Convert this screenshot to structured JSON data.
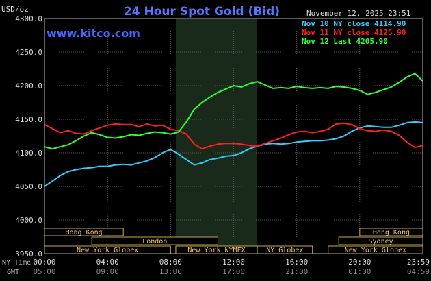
{
  "header": {
    "unit_label": "USD/oz",
    "title": "24 Hour Spot Gold (Bid)",
    "timestamp": "November 12, 2025 23:51",
    "watermark": "www.kitco.com"
  },
  "legend": [
    {
      "text": "Nov 10 NY close 4114.90",
      "color": "#33ccff"
    },
    {
      "text": "Nov 11 NY close 4125.90",
      "color": "#ff2020"
    },
    {
      "text": "Nov 12 Last 4205.90",
      "color": "#33ff33"
    }
  ],
  "axis": {
    "y_ticks": [
      "4300.0",
      "4250.0",
      "4200.0",
      "4150.0",
      "4100.0",
      "4050.0",
      "4000.0",
      "3950.0"
    ],
    "x_ticks_ny": [
      "00:00",
      "04:00",
      "08:00",
      "12:00",
      "16:00",
      "20:00",
      "23:59"
    ],
    "x_ticks_gmt": [
      "05:00",
      "09:00",
      "13:00",
      "17:00",
      "21:00",
      "01:00",
      "04:59"
    ],
    "row_label_ny": "NY Time",
    "row_label_gmt": "GMT"
  },
  "sessions": [
    {
      "label": "Hong Kong",
      "start": 0.0,
      "end": 5.0,
      "row": 0
    },
    {
      "label": "Hong Kong",
      "start": 20.0,
      "end": 24.0,
      "row": 0
    },
    {
      "label": "London",
      "start": 3.0,
      "end": 11.0,
      "row": 1
    },
    {
      "label": "Sydney",
      "start": 18.67,
      "end": 24.0,
      "row": 1
    },
    {
      "label": "New York Globex",
      "start": 0.0,
      "end": 8.0,
      "row": 2
    },
    {
      "label": "New York NYMEX",
      "start": 8.33,
      "end": 13.5,
      "row": 2
    },
    {
      "label": "NY Globex",
      "start": 13.5,
      "end": 17.0,
      "row": 2
    },
    {
      "label": "New York Globex",
      "start": 18.0,
      "end": 24.0,
      "row": 2
    }
  ],
  "chart_data": {
    "type": "line",
    "title": "24 Hour Spot Gold (Bid)",
    "ylabel": "USD/oz",
    "xlabel": "NY Time",
    "ylim": [
      3950,
      4300
    ],
    "xlim": [
      0,
      24
    ],
    "grid": true,
    "highlight_range": [
      8.33,
      13.5
    ],
    "series": [
      {
        "name": "Nov 10 NY close 4114.90",
        "color": "#33ccff",
        "x": [
          0,
          0.5,
          1,
          1.5,
          2,
          2.5,
          3,
          3.5,
          4,
          4.5,
          5,
          5.5,
          6,
          6.5,
          7,
          7.5,
          8,
          8.5,
          9,
          9.5,
          10,
          10.5,
          11,
          11.5,
          12,
          12.5,
          13,
          13.5,
          14,
          14.5,
          15,
          15.5,
          16,
          16.5,
          17,
          17.5,
          18,
          18.5,
          19,
          19.5,
          20,
          20.5,
          21,
          21.5,
          22,
          22.5,
          23,
          23.5,
          24
        ],
        "y": [
          4050,
          4058,
          4066,
          4072,
          4075,
          4077,
          4078,
          4080,
          4080,
          4082,
          4083,
          4082,
          4085,
          4088,
          4093,
          4100,
          4105,
          4098,
          4090,
          4082,
          4085,
          4090,
          4092,
          4095,
          4096,
          4100,
          4106,
          4110,
          4113,
          4114,
          4113,
          4114,
          4116,
          4117,
          4118,
          4118,
          4119,
          4121,
          4125,
          4132,
          4137,
          4140,
          4139,
          4138,
          4138,
          4141,
          4145,
          4146,
          4145
        ]
      },
      {
        "name": "Nov 11 NY close 4125.90",
        "color": "#ff2020",
        "x": [
          0,
          0.5,
          1,
          1.5,
          2,
          2.5,
          3,
          3.5,
          4,
          4.5,
          5,
          5.5,
          6,
          6.5,
          7,
          7.5,
          8,
          8.5,
          9,
          9.5,
          10,
          10.5,
          11,
          11.5,
          12,
          12.5,
          13,
          13.5,
          14,
          14.5,
          15,
          15.5,
          16,
          16.5,
          17,
          17.5,
          18,
          18.5,
          19,
          19.5,
          20,
          20.5,
          21,
          21.5,
          22,
          22.5,
          23,
          23.5,
          24
        ],
        "y": [
          4142,
          4136,
          4130,
          4133,
          4129,
          4128,
          4133,
          4137,
          4141,
          4143,
          4142,
          4142,
          4139,
          4143,
          4140,
          4141,
          4135,
          4133,
          4128,
          4113,
          4106,
          4110,
          4113,
          4114,
          4114,
          4113,
          4111,
          4110,
          4114,
          4118,
          4122,
          4127,
          4131,
          4132,
          4130,
          4132,
          4135,
          4143,
          4144,
          4142,
          4136,
          4133,
          4132,
          4134,
          4132,
          4126,
          4116,
          4108,
          4111
        ]
      },
      {
        "name": "Nov 12 Last 4205.90",
        "color": "#33ff33",
        "x": [
          0,
          0.5,
          1,
          1.5,
          2,
          2.5,
          3,
          3.5,
          4,
          4.5,
          5,
          5.5,
          6,
          6.5,
          7,
          7.5,
          8,
          8.5,
          9,
          9.5,
          10,
          10.5,
          11,
          11.5,
          12,
          12.5,
          13,
          13.5,
          14,
          14.5,
          15,
          15.5,
          16,
          16.5,
          17,
          17.5,
          18,
          18.5,
          19,
          19.5,
          20,
          20.5,
          21,
          21.5,
          22,
          22.5,
          23,
          23.5,
          24
        ],
        "y": [
          4109,
          4106,
          4109,
          4112,
          4118,
          4125,
          4130,
          4127,
          4123,
          4122,
          4124,
          4127,
          4126,
          4129,
          4131,
          4130,
          4128,
          4131,
          4146,
          4165,
          4175,
          4183,
          4190,
          4195,
          4200,
          4198,
          4203,
          4206,
          4201,
          4196,
          4197,
          4196,
          4199,
          4197,
          4196,
          4197,
          4196,
          4199,
          4198,
          4196,
          4193,
          4187,
          4190,
          4194,
          4198,
          4205,
          4213,
          4218,
          4207
        ]
      }
    ]
  }
}
